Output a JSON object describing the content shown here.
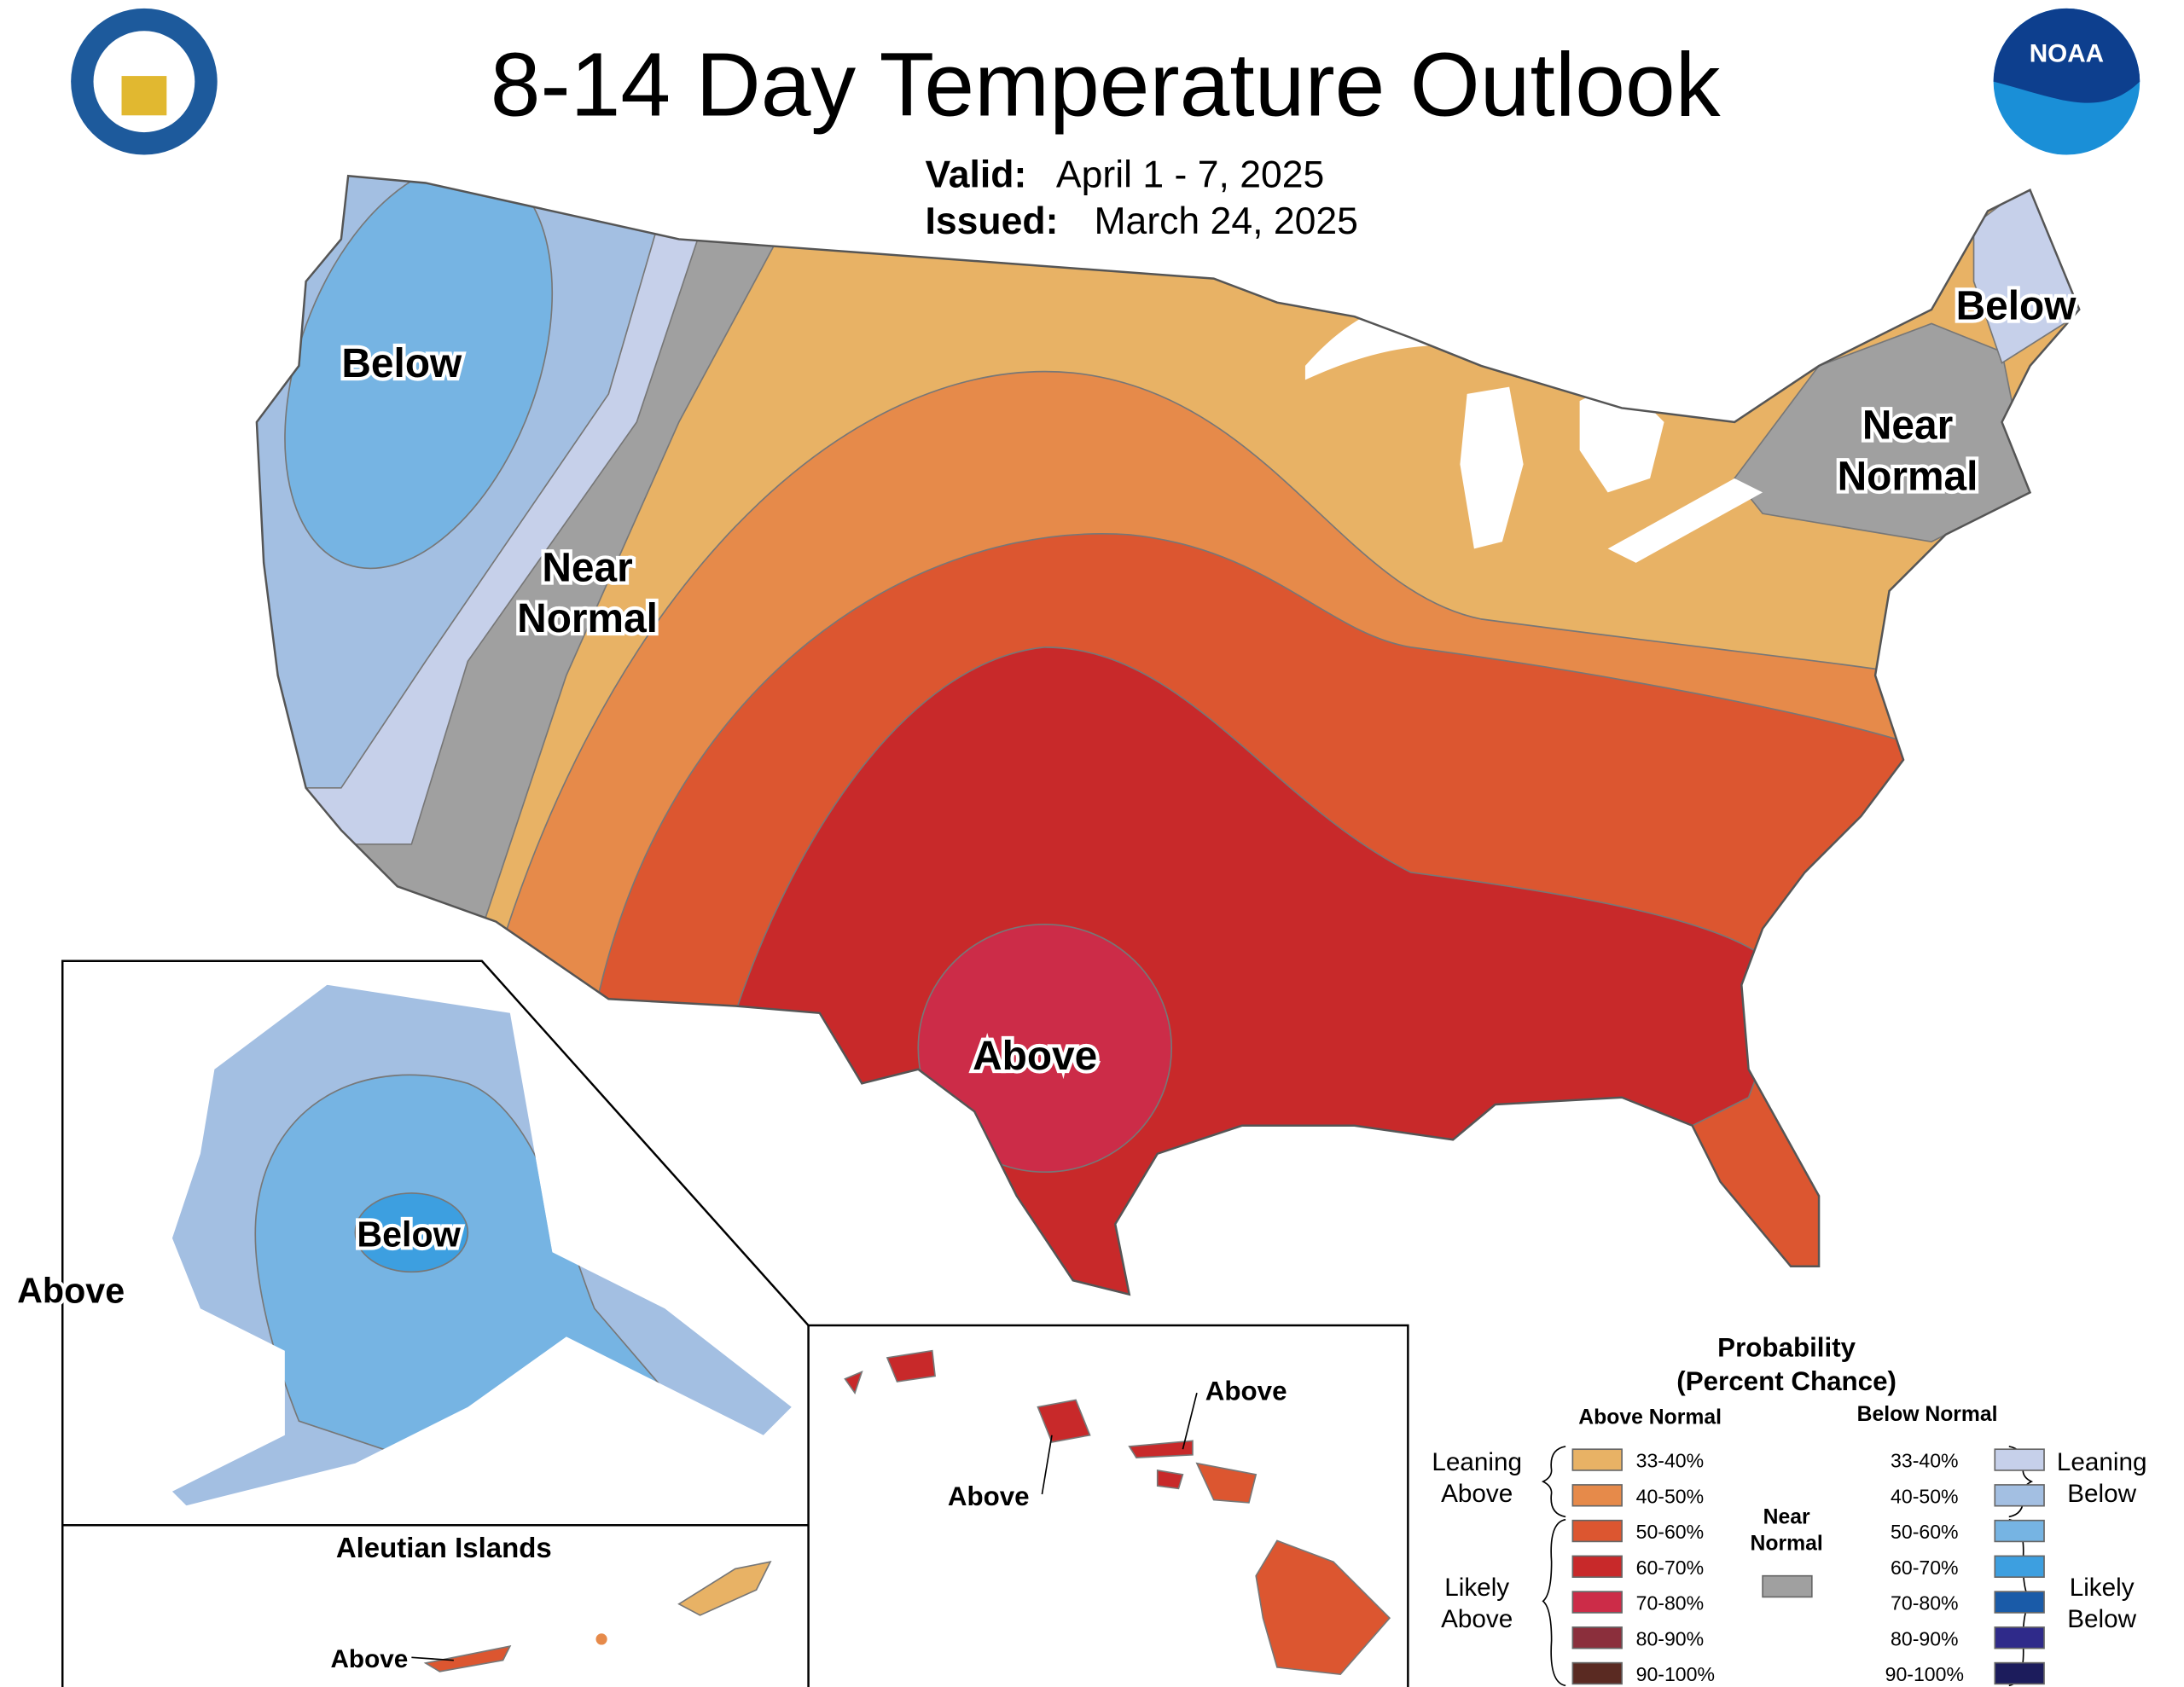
{
  "header": {
    "title": "8-14 Day Temperature Outlook",
    "valid_label": "Valid:",
    "valid": "April 1 - 7, 2025",
    "issued_label": "Issued:",
    "issued": "March 24, 2025"
  },
  "logos": {
    "noaa": "NOAA"
  },
  "map_labels": [
    {
      "lines": [
        "Below"
      ]
    },
    {
      "lines": [
        "Near",
        "Normal"
      ]
    },
    {
      "lines": [
        "Below"
      ]
    },
    {
      "lines": [
        "Near",
        "Normal"
      ]
    },
    {
      "lines": [
        "Above"
      ]
    },
    {
      "lines": [
        "Below"
      ]
    },
    {
      "lines": [
        "Above"
      ]
    },
    {
      "lines": [
        "Above"
      ]
    },
    {
      "lines": [
        "Above"
      ]
    },
    {
      "lines": [
        "Above"
      ]
    }
  ],
  "insets": {
    "aleutian_title": "Aleutian Islands"
  },
  "legend": {
    "title": "Probability",
    "subtitle": "(Percent Chance)",
    "above_header": "Above Normal",
    "below_header": "Below Normal",
    "above": [
      {
        "label": "33-40%",
        "color": "#e8b265"
      },
      {
        "label": "40-50%",
        "color": "#e68a4a"
      },
      {
        "label": "50-60%",
        "color": "#dc5630"
      },
      {
        "label": "60-70%",
        "color": "#c8292a"
      },
      {
        "label": "70-80%",
        "color": "#cc2c48"
      },
      {
        "label": "80-90%",
        "color": "#8b2f3c"
      },
      {
        "label": "90-100%",
        "color": "#5a2a22"
      }
    ],
    "below": [
      {
        "label": "33-40%",
        "color": "#c6d0ea"
      },
      {
        "label": "40-50%",
        "color": "#a3bfe2"
      },
      {
        "label": "50-60%",
        "color": "#76b4e3"
      },
      {
        "label": "60-70%",
        "color": "#3d9fe0"
      },
      {
        "label": "70-80%",
        "color": "#1a5ba8"
      },
      {
        "label": "80-90%",
        "color": "#2f2a8a"
      },
      {
        "label": "90-100%",
        "color": "#1c1c5c"
      }
    ],
    "near": {
      "lines": [
        "Near",
        "Normal"
      ],
      "color": "#a0a0a0"
    },
    "groups": {
      "leaning_above": [
        "Leaning",
        "Above"
      ],
      "likely_above": [
        "Likely",
        "Above"
      ],
      "leaning_below": [
        "Leaning",
        "Below"
      ],
      "likely_below": [
        "Likely",
        "Below"
      ]
    }
  }
}
